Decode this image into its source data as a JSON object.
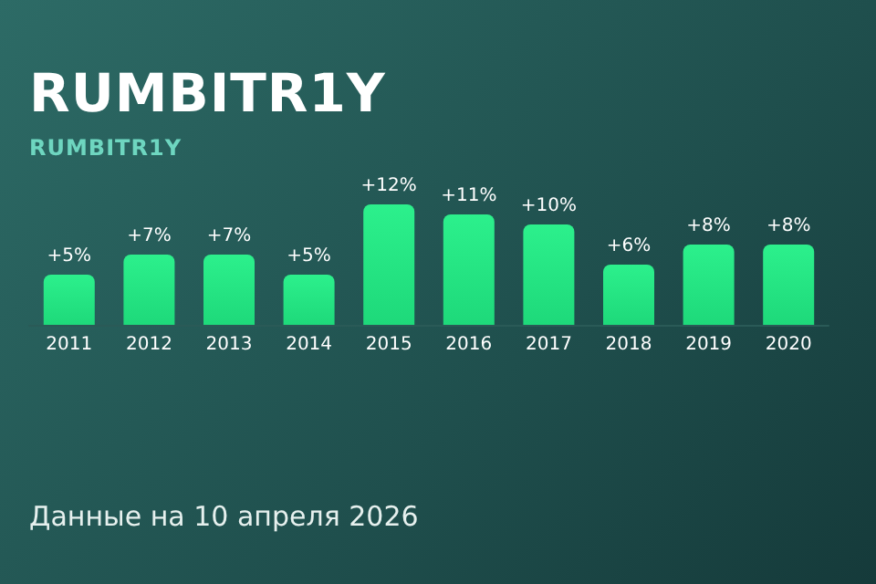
{
  "chart_data": {
    "type": "bar",
    "title": "RUMBITR1Y",
    "subtitle": "RUMBITR1Y",
    "categories": [
      "2011",
      "2012",
      "2013",
      "2014",
      "2015",
      "2016",
      "2017",
      "2018",
      "2019",
      "2020"
    ],
    "values": [
      5,
      7,
      7,
      5,
      12,
      11,
      10,
      6,
      8,
      8
    ],
    "value_labels": [
      "+5%",
      "+7%",
      "+7%",
      "+5%",
      "+12%",
      "+11%",
      "+10%",
      "+6%",
      "+8%",
      "+8%"
    ],
    "color": "#1ed97a",
    "tick_labels": "x",
    "annotations": [
      "Данные на 10 апреля 2026"
    ]
  }
}
